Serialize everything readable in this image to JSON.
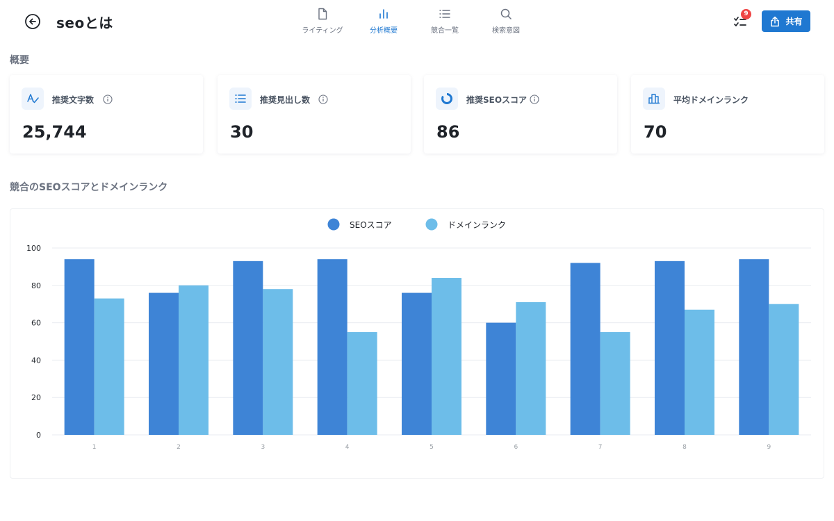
{
  "header": {
    "title": "seoとは",
    "share_label": "共有",
    "task_badge": "9",
    "tabs": [
      {
        "label": "ライティング",
        "icon": "document-icon"
      },
      {
        "label": "分析概要",
        "icon": "bar-chart-icon"
      },
      {
        "label": "競合一覧",
        "icon": "list-icon"
      },
      {
        "label": "検索意図",
        "icon": "search-icon"
      }
    ],
    "active_tab": 1
  },
  "overview": {
    "title": "概要",
    "cards": [
      {
        "label": "推奨文字数",
        "value": "25,744",
        "icon": "spellcheck-icon",
        "info": true
      },
      {
        "label": "推奨見出し数",
        "value": "30",
        "icon": "list-icon",
        "info": true
      },
      {
        "label": "推奨SEOスコア",
        "value": "86",
        "icon": "donut-icon",
        "info": true
      },
      {
        "label": "平均ドメインランク",
        "value": "70",
        "icon": "bar-icon",
        "info": false
      }
    ]
  },
  "competitor": {
    "title": "競合のSEOスコアとドメインランク"
  },
  "colors": {
    "accent": "#1f78d1",
    "seo": "#3e84d6",
    "domain": "#6dbde9",
    "badge": "#ef4444"
  },
  "chart_data": {
    "type": "bar",
    "categories": [
      "1",
      "2",
      "3",
      "4",
      "5",
      "6",
      "7",
      "8",
      "9"
    ],
    "series": [
      {
        "name": "SEOスコア",
        "values": [
          94,
          76,
          93,
          94,
          76,
          60,
          92,
          93,
          94
        ]
      },
      {
        "name": "ドメインランク",
        "values": [
          73,
          80,
          78,
          55,
          84,
          71,
          55,
          67,
          70
        ]
      }
    ],
    "yticks": [
      "0",
      "20",
      "40",
      "60",
      "80",
      "100"
    ],
    "ylim": [
      0,
      100
    ],
    "title": "",
    "xlabel": "",
    "ylabel": "",
    "legend": "top-center",
    "grid": true
  }
}
